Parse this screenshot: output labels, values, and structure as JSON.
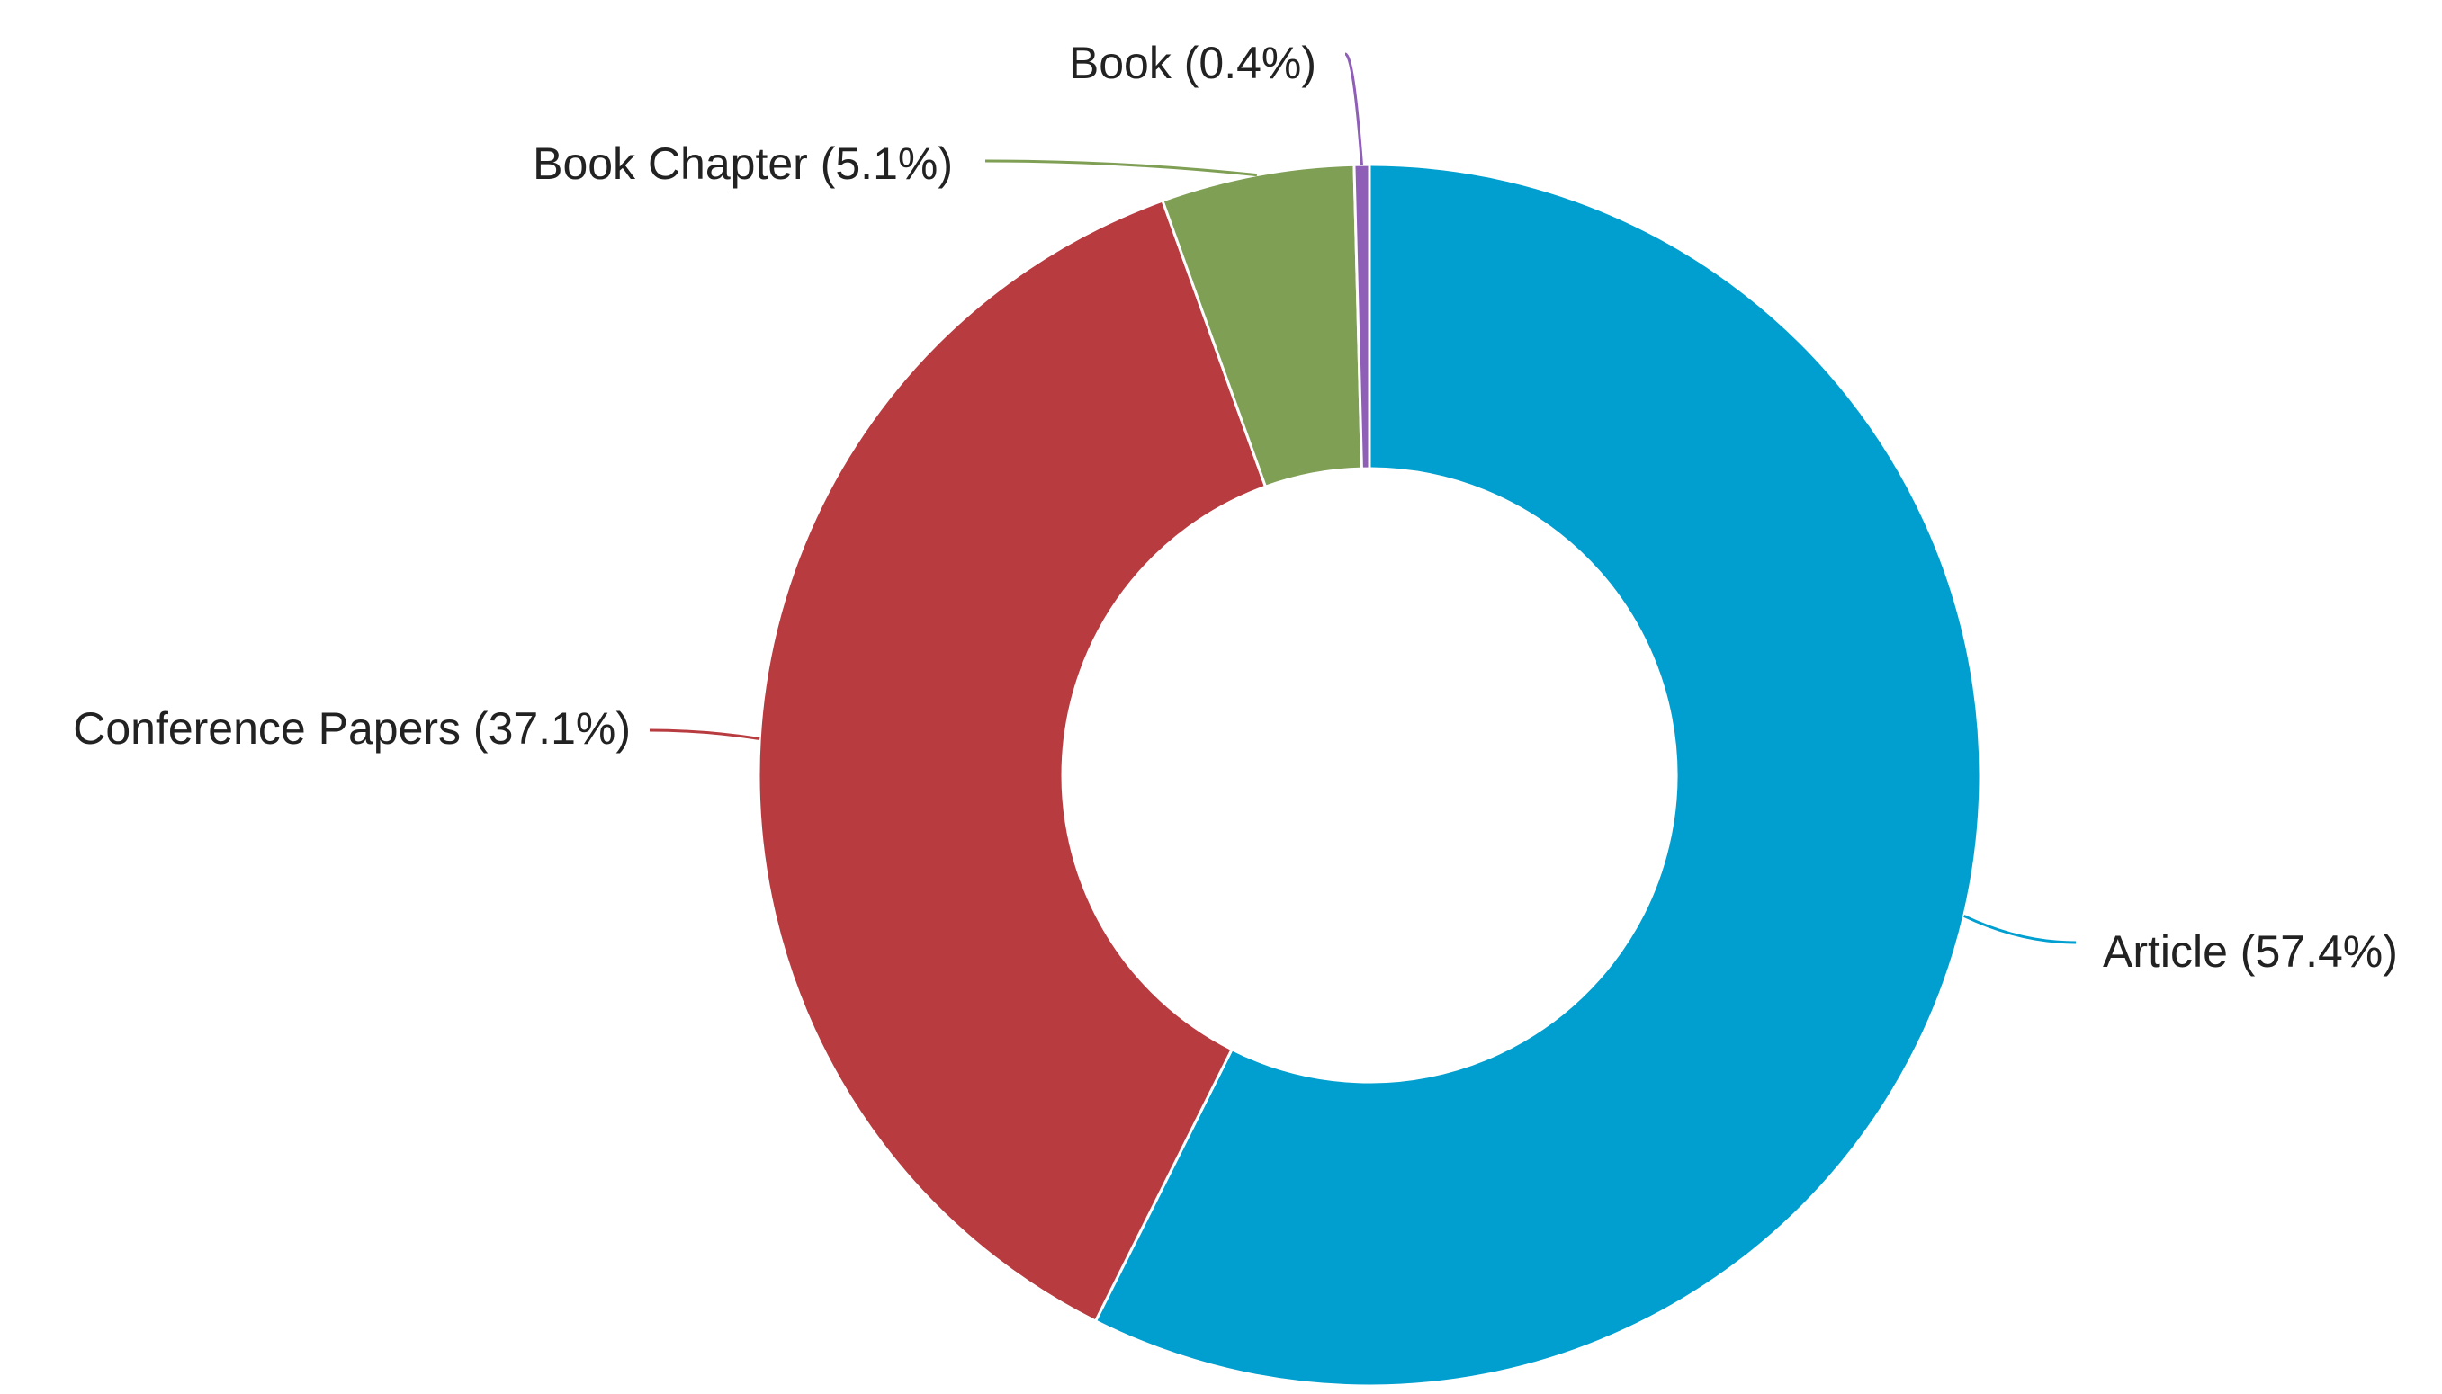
{
  "chart_data": {
    "type": "donut",
    "values": [
      57.4,
      37.1,
      5.1,
      0.4
    ],
    "value_labels": [
      "Article (57.4%)",
      "Conference Papers (37.1%)",
      "Book Chapter (5.1%)",
      "Book (0.4%)"
    ],
    "colors": [
      "#009fcf",
      "#b83b40",
      "#7f9f55",
      "#8f5fb8"
    ]
  }
}
